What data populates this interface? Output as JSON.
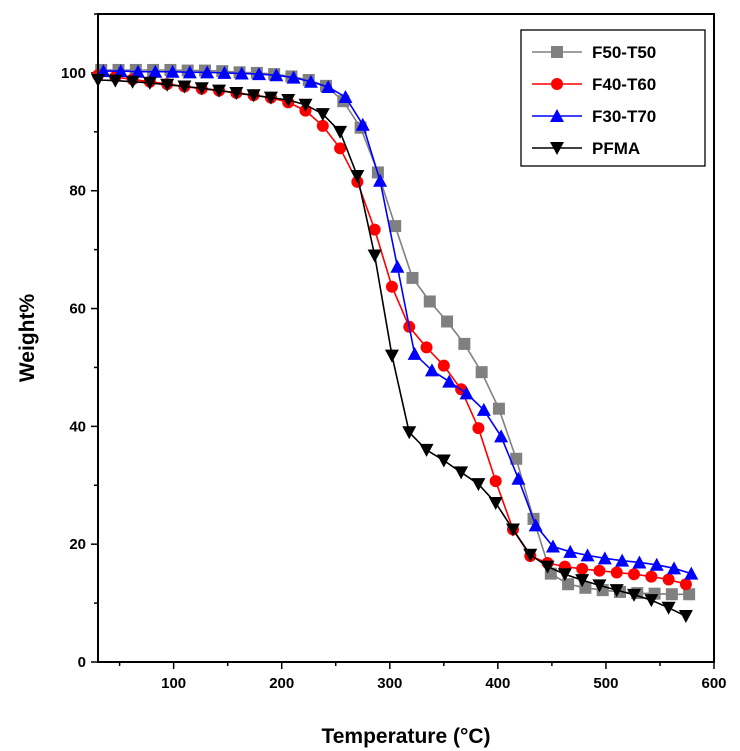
{
  "chart_data": {
    "type": "line",
    "title": "",
    "xlabel": "Temperature (°C)",
    "ylabel": "Weight%",
    "xlim": [
      30,
      600
    ],
    "ylim": [
      0,
      110
    ],
    "xticks": [
      100,
      200,
      300,
      400,
      500,
      600
    ],
    "yticks": [
      0,
      20,
      40,
      60,
      80,
      100
    ],
    "grid": false,
    "legend_position": "top-right",
    "series": [
      {
        "name": "F50-T50",
        "color": "#808080",
        "marker": "square",
        "x": [
          33,
          49,
          65,
          81,
          97,
          113,
          129,
          145,
          161,
          177,
          193,
          209,
          225,
          241,
          257,
          273,
          289,
          305,
          321,
          337,
          353,
          369,
          385,
          401,
          417,
          433,
          449,
          465,
          481,
          497,
          513,
          529,
          545,
          561,
          577
        ],
        "y": [
          100.5,
          100.5,
          100.5,
          100.5,
          100.5,
          100.4,
          100.4,
          100.3,
          100.1,
          100.0,
          99.8,
          99.4,
          98.8,
          97.8,
          95.2,
          90.7,
          83.1,
          74.0,
          65.2,
          61.2,
          57.8,
          54.0,
          49.2,
          43.0,
          34.5,
          24.3,
          15.0,
          13.2,
          12.6,
          12.2,
          11.9,
          11.7,
          11.6,
          11.5,
          11.5
        ]
      },
      {
        "name": "F40-T60",
        "color": "#ff0000",
        "marker": "circle",
        "x": [
          30,
          46,
          62,
          78,
          94,
          110,
          126,
          142,
          158,
          174,
          190,
          206,
          222,
          238,
          254,
          270,
          286,
          302,
          318,
          334,
          350,
          366,
          382,
          398,
          414,
          430,
          446,
          462,
          478,
          494,
          510,
          526,
          542,
          558,
          574
        ],
        "y": [
          99.6,
          99.3,
          98.9,
          98.5,
          98.1,
          97.7,
          97.3,
          97.0,
          96.6,
          96.2,
          95.8,
          95.0,
          93.6,
          91.0,
          87.2,
          81.5,
          73.4,
          63.7,
          56.9,
          53.4,
          50.3,
          46.3,
          39.7,
          30.7,
          22.5,
          18.0,
          16.8,
          16.2,
          15.8,
          15.5,
          15.2,
          14.9,
          14.5,
          14.0,
          13.2
        ]
      },
      {
        "name": "F30-T70",
        "color": "#0000ff",
        "marker": "triangle-up",
        "x": [
          35,
          51,
          67,
          83,
          99,
          115,
          131,
          147,
          163,
          179,
          195,
          211,
          227,
          243,
          259,
          275,
          291,
          307,
          323,
          339,
          355,
          371,
          387,
          403,
          419,
          435,
          451,
          467,
          483,
          499,
          515,
          531,
          547,
          563,
          579
        ],
        "y": [
          100.3,
          100.3,
          100.2,
          100.2,
          100.2,
          100.1,
          100.1,
          100.0,
          99.9,
          99.8,
          99.6,
          99.2,
          98.5,
          97.6,
          95.9,
          91.2,
          81.7,
          67.1,
          52.3,
          49.5,
          47.6,
          45.6,
          42.8,
          38.3,
          31.1,
          23.2,
          19.6,
          18.7,
          18.1,
          17.6,
          17.2,
          16.9,
          16.5,
          15.9,
          15.0
        ]
      },
      {
        "name": "PFMA",
        "color": "#000000",
        "marker": "triangle-down",
        "x": [
          30,
          46,
          62,
          78,
          94,
          110,
          126,
          142,
          158,
          174,
          190,
          206,
          222,
          238,
          254,
          270,
          286,
          302,
          318,
          334,
          350,
          366,
          382,
          398,
          414,
          430,
          446,
          462,
          478,
          494,
          510,
          526,
          542,
          558,
          574
        ],
        "y": [
          98.8,
          98.7,
          98.5,
          98.3,
          98.0,
          97.7,
          97.4,
          97.0,
          96.6,
          96.2,
          95.8,
          95.4,
          94.6,
          93.0,
          90.0,
          82.5,
          69.0,
          52.0,
          39.0,
          36.0,
          34.2,
          32.2,
          30.2,
          27.0,
          22.5,
          18.2,
          16.2,
          14.9,
          13.9,
          13.0,
          12.2,
          11.4,
          10.5,
          9.2,
          7.8
        ]
      }
    ]
  }
}
